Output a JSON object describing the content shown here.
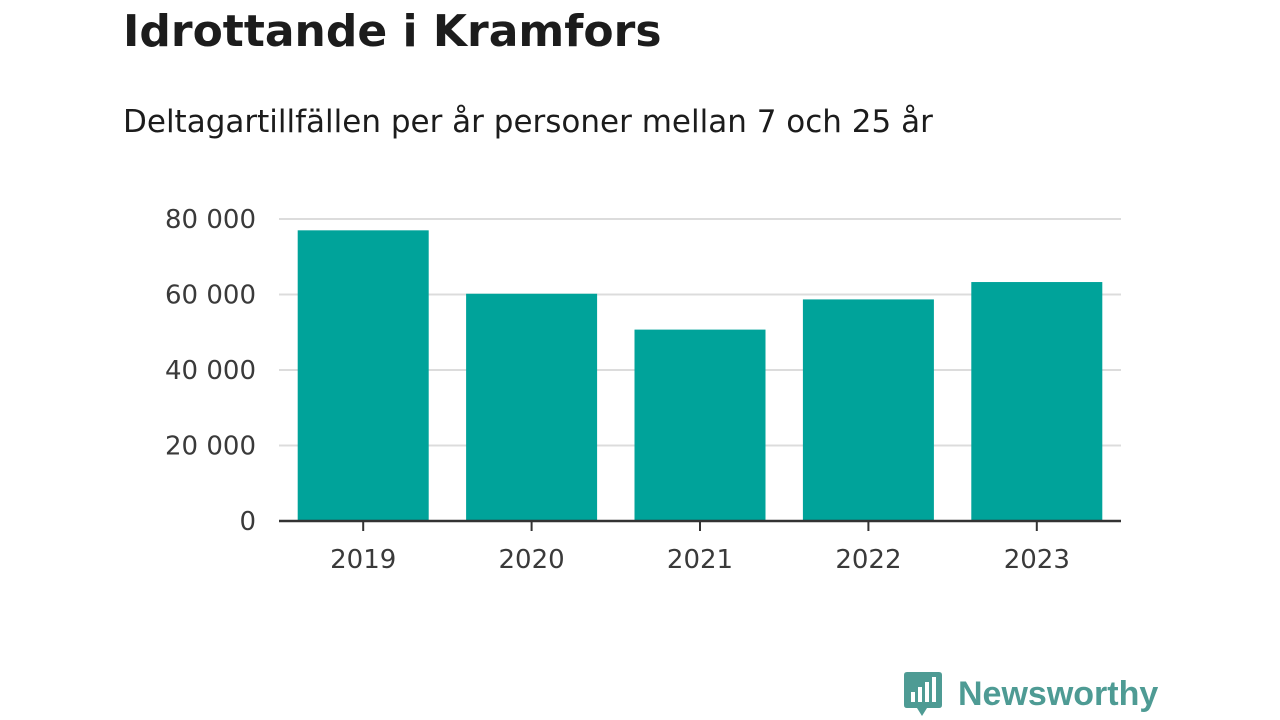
{
  "header": {
    "title": "Idrottande i Kramfors",
    "subtitle": "Deltagartillfällen per år personer mellan 7 och 25 år"
  },
  "brand": {
    "name": "Newsworthy",
    "icon": "chart-speech-bubble-icon",
    "color": "#4e9b94"
  },
  "chart_data": {
    "type": "bar",
    "categories": [
      "2019",
      "2020",
      "2021",
      "2022",
      "2023"
    ],
    "values": [
      77000,
      60200,
      50700,
      58700,
      63300
    ],
    "ylim": [
      0,
      80000
    ],
    "yticks": [
      0,
      20000,
      40000,
      60000,
      80000
    ],
    "ytick_labels": [
      "0",
      "20 000",
      "40 000",
      "60 000",
      "80 000"
    ],
    "title": "",
    "xlabel": "",
    "ylabel": "",
    "grid": true,
    "bar_color": "#00a39a"
  }
}
